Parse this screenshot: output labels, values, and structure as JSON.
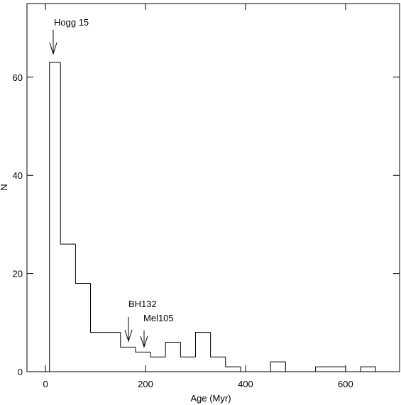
{
  "chart_data": {
    "type": "histogram",
    "xlabel": "Age (Myr)",
    "ylabel": "N",
    "bins": [
      8,
      30,
      60,
      90,
      120,
      150,
      180,
      210,
      240,
      270,
      300,
      330,
      360,
      390,
      420,
      450,
      480,
      510,
      540,
      570,
      600,
      630,
      660
    ],
    "values": [
      63,
      26,
      18,
      8,
      8,
      5,
      4,
      3,
      6,
      3,
      8,
      3,
      1,
      0,
      0,
      2,
      0,
      0,
      1,
      1,
      0,
      1
    ],
    "color": "#000000",
    "xlim": [
      -37,
      708
    ],
    "ylim": [
      0,
      75
    ],
    "xticks": [
      0,
      200,
      400,
      600
    ],
    "yticks": [
      0,
      20,
      40,
      60
    ],
    "annotations": [
      "Hogg 15",
      "BH132",
      "Mel105"
    ]
  }
}
